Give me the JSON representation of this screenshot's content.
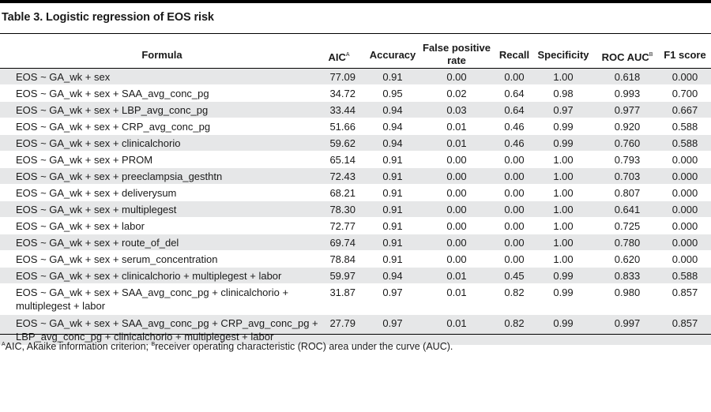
{
  "caption": "Table 3. Logistic regression of EOS risk",
  "headers": {
    "formula": "Formula",
    "aic": "AIC",
    "aic_mark": "A",
    "accuracy": "Accuracy",
    "fpr_line1": "False positive",
    "fpr_line2": "rate",
    "recall": "Recall",
    "specificity": "Specificity",
    "roc": "ROC AUC",
    "roc_mark": "B",
    "f1": "F1 score"
  },
  "rows": [
    {
      "formula": "EOS ~ GA_wk + sex",
      "aic": "77.09",
      "accuracy": "0.91",
      "fpr": "0.00",
      "recall": "0.00",
      "specificity": "1.00",
      "roc": "0.618",
      "f1": "0.000"
    },
    {
      "formula": "EOS ~ GA_wk + sex + SAA_avg_conc_pg",
      "aic": "34.72",
      "accuracy": "0.95",
      "fpr": "0.02",
      "recall": "0.64",
      "specificity": "0.98",
      "roc": "0.993",
      "f1": "0.700"
    },
    {
      "formula": "EOS ~ GA_wk + sex + LBP_avg_conc_pg",
      "aic": "33.44",
      "accuracy": "0.94",
      "fpr": "0.03",
      "recall": "0.64",
      "specificity": "0.97",
      "roc": "0.977",
      "f1": "0.667"
    },
    {
      "formula": "EOS ~ GA_wk + sex + CRP_avg_conc_pg",
      "aic": "51.66",
      "accuracy": "0.94",
      "fpr": "0.01",
      "recall": "0.46",
      "specificity": "0.99",
      "roc": "0.920",
      "f1": "0.588"
    },
    {
      "formula": "EOS ~ GA_wk + sex + clinicalchorio",
      "aic": "59.62",
      "accuracy": "0.94",
      "fpr": "0.01",
      "recall": "0.46",
      "specificity": "0.99",
      "roc": "0.760",
      "f1": "0.588"
    },
    {
      "formula": "EOS ~ GA_wk + sex + PROM",
      "aic": "65.14",
      "accuracy": "0.91",
      "fpr": "0.00",
      "recall": "0.00",
      "specificity": "1.00",
      "roc": "0.793",
      "f1": "0.000"
    },
    {
      "formula": "EOS ~ GA_wk + sex + preeclampsia_gesthtn",
      "aic": "72.43",
      "accuracy": "0.91",
      "fpr": "0.00",
      "recall": "0.00",
      "specificity": "1.00",
      "roc": "0.703",
      "f1": "0.000"
    },
    {
      "formula": "EOS ~ GA_wk + sex + deliverysum",
      "aic": "68.21",
      "accuracy": "0.91",
      "fpr": "0.00",
      "recall": "0.00",
      "specificity": "1.00",
      "roc": "0.807",
      "f1": "0.000"
    },
    {
      "formula": "EOS ~ GA_wk + sex + multiplegest",
      "aic": "78.30",
      "accuracy": "0.91",
      "fpr": "0.00",
      "recall": "0.00",
      "specificity": "1.00",
      "roc": "0.641",
      "f1": "0.000"
    },
    {
      "formula": "EOS ~ GA_wk + sex + labor",
      "aic": "72.77",
      "accuracy": "0.91",
      "fpr": "0.00",
      "recall": "0.00",
      "specificity": "1.00",
      "roc": "0.725",
      "f1": "0.000"
    },
    {
      "formula": "EOS ~ GA_wk + sex + route_of_del",
      "aic": "69.74",
      "accuracy": "0.91",
      "fpr": "0.00",
      "recall": "0.00",
      "specificity": "1.00",
      "roc": "0.780",
      "f1": "0.000"
    },
    {
      "formula": "EOS ~ GA_wk + sex + serum_concentration",
      "aic": "78.84",
      "accuracy": "0.91",
      "fpr": "0.00",
      "recall": "0.00",
      "specificity": "1.00",
      "roc": "0.620",
      "f1": "0.000"
    },
    {
      "formula": "EOS ~ GA_wk + sex + clinicalchorio + multiplegest + labor",
      "aic": "59.97",
      "accuracy": "0.94",
      "fpr": "0.01",
      "recall": "0.45",
      "specificity": "0.99",
      "roc": "0.833",
      "f1": "0.588"
    },
    {
      "formula": "EOS ~ GA_wk + sex + SAA_avg_conc_pg + clinicalchorio + multiplegest + labor",
      "aic": "31.87",
      "accuracy": "0.97",
      "fpr": "0.01",
      "recall": "0.82",
      "specificity": "0.99",
      "roc": "0.980",
      "f1": "0.857"
    },
    {
      "formula": "EOS ~ GA_wk + sex + SAA_avg_conc_pg + CRP_avg_conc_pg + LBP_avg_conc_pg + clinicalchorio + multiplegest + labor",
      "aic": "27.79",
      "accuracy": "0.97",
      "fpr": "0.01",
      "recall": "0.82",
      "specificity": "0.99",
      "roc": "0.997",
      "f1": "0.857"
    }
  ],
  "footnote": {
    "mark_a": "A",
    "text_a": "AIC, Akaike information criterion; ",
    "mark_b": "B",
    "text_b": "receiver operating characteristic (ROC) area under the curve (AUC)."
  }
}
